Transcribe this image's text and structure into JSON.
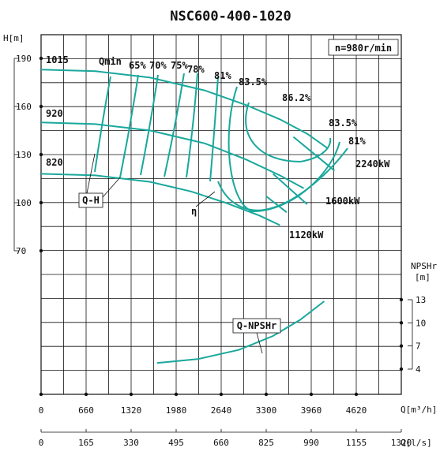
{
  "chart_data": {
    "type": "line",
    "title": "NSC600-400-1020",
    "speed_label": "n=980r/min",
    "x_axis": {
      "label": "Q[m³/h]",
      "ticks": [
        0,
        660,
        1320,
        1980,
        2640,
        3300,
        3960,
        4620
      ],
      "range": [
        0,
        5280
      ]
    },
    "x2_axis": {
      "label": "Q[l/s]",
      "ticks": [
        0,
        165,
        330,
        495,
        660,
        825,
        990,
        1155,
        1320
      ]
    },
    "y_axis": {
      "label": "H[m]",
      "ticks": [
        190,
        160,
        130,
        100,
        70
      ],
      "range": [
        70,
        190
      ]
    },
    "y2_axis": {
      "label_line1": "NPSHr",
      "label_line2": "[m]",
      "ticks": [
        13,
        10,
        7,
        4
      ]
    },
    "impeller_labels": [
      "1015",
      "920",
      "820"
    ],
    "qh_curves": [
      {
        "name": "1015",
        "x": [
          0,
          800,
          1600,
          2400,
          3000,
          3500,
          3900,
          4200
        ],
        "y": [
          183,
          182,
          178,
          170,
          161,
          152,
          143,
          134
        ]
      },
      {
        "name": "920",
        "x": [
          0,
          800,
          1600,
          2400,
          3000,
          3500,
          3850
        ],
        "y": [
          150,
          149,
          145,
          137,
          127,
          117,
          109
        ]
      },
      {
        "name": "820",
        "x": [
          0,
          800,
          1600,
          2200,
          2700,
          3200,
          3500
        ],
        "y": [
          118,
          117,
          113,
          107,
          100,
          92,
          86
        ]
      }
    ],
    "efficiency_labels": [
      "Qmin",
      "65%",
      "70%",
      "75%",
      "78%",
      "81%",
      "83.5%",
      "86.2%",
      "83.5%",
      "81%"
    ],
    "power_curves": [
      {
        "name": "2240kW",
        "x": [
          3700,
          4300
        ],
        "y": [
          141,
          120
        ]
      },
      {
        "name": "1600kW",
        "x": [
          3400,
          3900
        ],
        "y": [
          118,
          99
        ]
      },
      {
        "name": "1120kW",
        "x": [
          3300,
          3600
        ],
        "y": [
          104,
          94
        ]
      }
    ],
    "npsh_curve": {
      "name": "Q-NPSHr",
      "x": [
        1700,
        2300,
        2900,
        3400,
        3800,
        4150
      ],
      "y": [
        4.8,
        5.3,
        6.5,
        8.3,
        10.4,
        12.8
      ]
    },
    "annotations": {
      "qh": "Q-H",
      "eta": "η",
      "npsh": "Q-NPSHr"
    }
  }
}
